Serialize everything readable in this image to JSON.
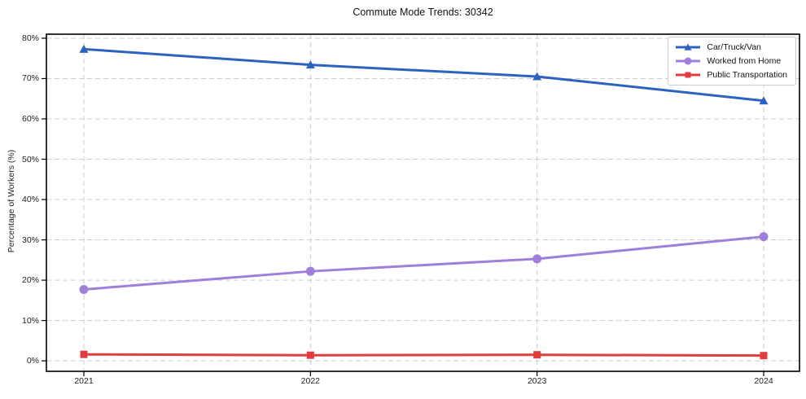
{
  "title": "Commute Mode Trends: 30342",
  "chart_data": {
    "type": "line",
    "title": "Commute Mode Trends: 30342",
    "xlabel": "",
    "ylabel": "Percentage of Workers (%)",
    "x": [
      "2021",
      "2022",
      "2023",
      "2024"
    ],
    "series": [
      {
        "name": "Car/Truck/Van",
        "values": [
          77.3,
          73.4,
          70.5,
          64.5
        ],
        "color": "#2b63c1",
        "marker": "triangle"
      },
      {
        "name": "Worked from Home",
        "values": [
          17.7,
          22.2,
          25.3,
          30.8
        ],
        "color": "#9f7fdb",
        "marker": "circle"
      },
      {
        "name": "Public Transportation",
        "values": [
          1.6,
          1.4,
          1.5,
          1.3
        ],
        "color": "#e23c3c",
        "marker": "square"
      }
    ],
    "yticks": [
      0,
      10,
      20,
      30,
      40,
      50,
      60,
      70,
      80
    ],
    "ytick_suffix": "%",
    "ylim": [
      -2.6,
      81
    ],
    "grid": true,
    "grid_color": "#cccccc",
    "spine_color": "#000000",
    "legend_position": "top-right"
  }
}
